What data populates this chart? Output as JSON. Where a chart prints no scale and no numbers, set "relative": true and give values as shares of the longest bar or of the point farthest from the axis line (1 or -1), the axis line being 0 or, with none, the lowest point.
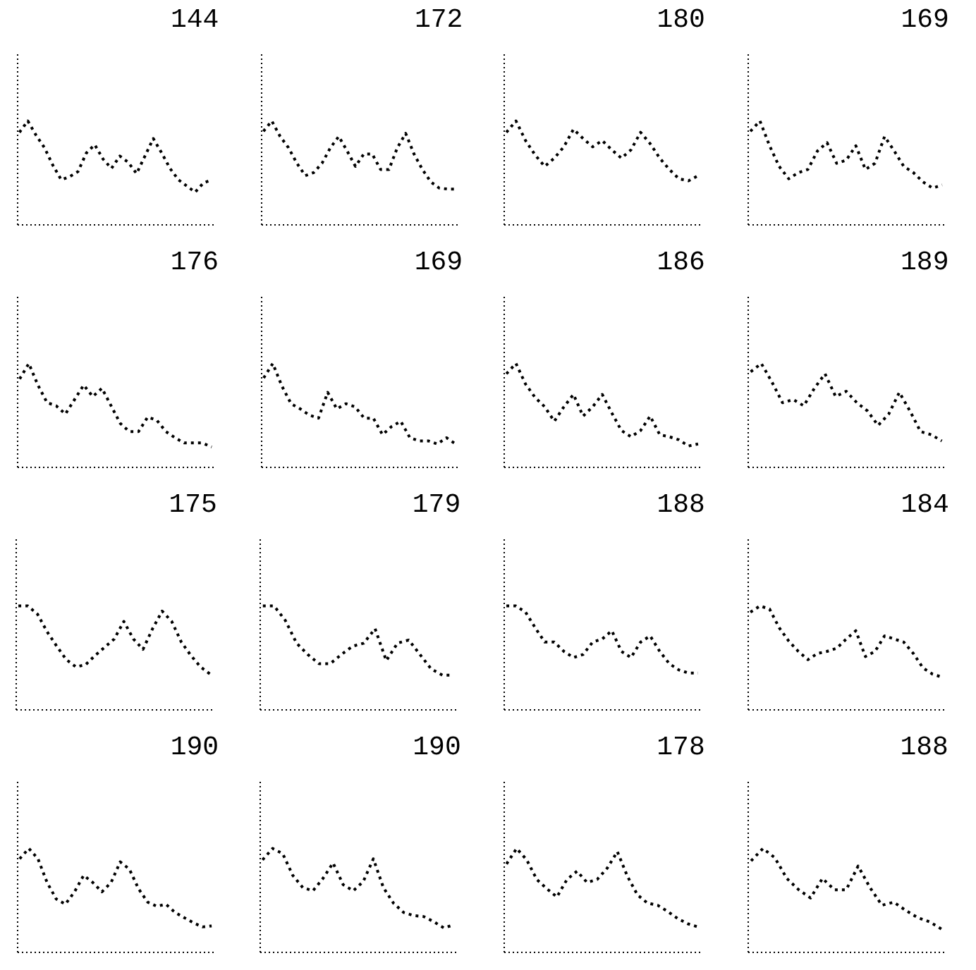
{
  "chart_data": [
    {
      "type": "line",
      "title": "144",
      "relative": true,
      "line_style": "dotted",
      "color": "#000000",
      "categories": [
        null,
        null,
        null,
        null,
        null,
        null,
        null,
        null,
        null,
        null,
        null,
        null,
        null,
        null,
        null,
        null,
        null,
        null,
        null,
        null,
        null,
        null,
        null,
        null
      ],
      "values": [
        0.89,
        1,
        0.86,
        0.74,
        0.57,
        0.43,
        0.46,
        0.51,
        0.69,
        0.77,
        0.63,
        0.54,
        0.66,
        0.6,
        0.49,
        0.66,
        0.83,
        0.69,
        0.54,
        0.43,
        0.37,
        0.31,
        0.4,
        0.43
      ]
    },
    {
      "type": "line",
      "title": "172",
      "relative": true,
      "line_style": "dotted",
      "color": "#000000",
      "categories": [
        null,
        null,
        null,
        null,
        null,
        null,
        null,
        null,
        null,
        null,
        null,
        null,
        null,
        null,
        null,
        null,
        null,
        null,
        null,
        null,
        null,
        null,
        null,
        null
      ],
      "values": [
        0.9,
        1,
        0.85,
        0.74,
        0.59,
        0.47,
        0.5,
        0.59,
        0.74,
        0.85,
        0.71,
        0.56,
        0.68,
        0.68,
        0.53,
        0.53,
        0.74,
        0.88,
        0.68,
        0.53,
        0.41,
        0.35,
        0.34,
        0.34
      ]
    },
    {
      "type": "line",
      "title": "180",
      "relative": true,
      "line_style": "dotted",
      "color": "#000000",
      "categories": [
        null,
        null,
        null,
        null,
        null,
        null,
        null,
        null,
        null,
        null,
        null,
        null,
        null,
        null,
        null,
        null,
        null,
        null,
        null,
        null,
        null
      ],
      "values": [
        0.89,
        1,
        0.81,
        0.67,
        0.56,
        0.64,
        0.75,
        0.92,
        0.83,
        0.75,
        0.81,
        0.72,
        0.64,
        0.72,
        0.89,
        0.78,
        0.64,
        0.53,
        0.44,
        0.42,
        0.47
      ]
    },
    {
      "type": "line",
      "title": "169",
      "relative": true,
      "line_style": "dotted",
      "color": "#000000",
      "categories": [
        null,
        null,
        null,
        null,
        null,
        null,
        null,
        null,
        null,
        null,
        null,
        null,
        null,
        null,
        null,
        null,
        null,
        null,
        null,
        null,
        null
      ],
      "values": [
        0.9,
        1,
        0.76,
        0.56,
        0.44,
        0.5,
        0.53,
        0.71,
        0.79,
        0.59,
        0.62,
        0.76,
        0.53,
        0.59,
        0.85,
        0.71,
        0.56,
        0.5,
        0.41,
        0.35,
        0.38
      ]
    },
    {
      "type": "line",
      "title": "176",
      "relative": true,
      "line_style": "dotted",
      "color": "#000000",
      "categories": [
        null,
        null,
        null,
        null,
        null,
        null,
        null,
        null,
        null,
        null,
        null,
        null,
        null,
        null,
        null,
        null,
        null,
        null,
        null,
        null,
        null,
        null
      ],
      "values": [
        0.85,
        1,
        0.79,
        0.62,
        0.59,
        0.51,
        0.65,
        0.79,
        0.68,
        0.76,
        0.59,
        0.42,
        0.34,
        0.34,
        0.48,
        0.45,
        0.34,
        0.28,
        0.23,
        0.23,
        0.23,
        0.19
      ]
    },
    {
      "type": "line",
      "title": "169",
      "relative": true,
      "line_style": "dotted",
      "color": "#000000",
      "categories": [
        null,
        null,
        null,
        null,
        null,
        null,
        null,
        null,
        null,
        null,
        null,
        null,
        null,
        null,
        null,
        null,
        null,
        null,
        null,
        null,
        null,
        null
      ],
      "values": [
        0.86,
        1,
        0.78,
        0.61,
        0.56,
        0.5,
        0.47,
        0.72,
        0.56,
        0.61,
        0.58,
        0.47,
        0.47,
        0.31,
        0.39,
        0.44,
        0.28,
        0.25,
        0.25,
        0.22,
        0.28,
        0.22
      ]
    },
    {
      "type": "line",
      "title": "186",
      "relative": true,
      "line_style": "dotted",
      "color": "#000000",
      "categories": [
        null,
        null,
        null,
        null,
        null,
        null,
        null,
        null,
        null,
        null,
        null,
        null,
        null,
        null,
        null,
        null,
        null,
        null,
        null,
        null,
        null
      ],
      "values": [
        0.9,
        1,
        0.8,
        0.67,
        0.58,
        0.44,
        0.58,
        0.7,
        0.49,
        0.58,
        0.7,
        0.52,
        0.35,
        0.29,
        0.35,
        0.49,
        0.31,
        0.29,
        0.26,
        0.2,
        0.22
      ]
    },
    {
      "type": "line",
      "title": "189",
      "relative": true,
      "line_style": "dotted",
      "color": "#000000",
      "categories": [
        null,
        null,
        null,
        null,
        null,
        null,
        null,
        null,
        null,
        null,
        null,
        null,
        null,
        null,
        null,
        null,
        null,
        null,
        null
      ],
      "values": [
        0.92,
        1,
        0.82,
        0.62,
        0.65,
        0.59,
        0.76,
        0.9,
        0.68,
        0.73,
        0.62,
        0.54,
        0.4,
        0.51,
        0.72,
        0.54,
        0.34,
        0.31,
        0.25
      ]
    },
    {
      "type": "line",
      "title": "175",
      "relative": true,
      "line_style": "dotted",
      "color": "#000000",
      "categories": [
        null,
        null,
        null,
        null,
        null,
        null,
        null,
        null,
        null,
        null,
        null,
        null,
        null,
        null,
        null,
        null,
        null,
        null,
        null,
        null,
        null
      ],
      "values": [
        1,
        1,
        0.92,
        0.75,
        0.61,
        0.48,
        0.41,
        0.43,
        0.52,
        0.6,
        0.68,
        0.85,
        0.68,
        0.58,
        0.78,
        0.95,
        0.85,
        0.65,
        0.52,
        0.41,
        0.34
      ]
    },
    {
      "type": "line",
      "title": "179",
      "relative": true,
      "line_style": "dotted",
      "color": "#000000",
      "categories": [
        null,
        null,
        null,
        null,
        null,
        null,
        null,
        null,
        null,
        null,
        null,
        null,
        null,
        null,
        null,
        null,
        null,
        null
      ],
      "values": [
        1,
        1,
        0.86,
        0.64,
        0.53,
        0.44,
        0.44,
        0.53,
        0.61,
        0.64,
        0.78,
        0.47,
        0.64,
        0.67,
        0.53,
        0.39,
        0.33,
        0.33
      ]
    },
    {
      "type": "line",
      "title": "188",
      "relative": true,
      "line_style": "dotted",
      "color": "#000000",
      "categories": [
        null,
        null,
        null,
        null,
        null,
        null,
        null,
        null,
        null,
        null,
        null,
        null,
        null,
        null,
        null,
        null,
        null,
        null,
        null,
        null,
        null
      ],
      "values": [
        1,
        1,
        0.94,
        0.79,
        0.65,
        0.65,
        0.56,
        0.5,
        0.53,
        0.65,
        0.68,
        0.76,
        0.56,
        0.5,
        0.65,
        0.71,
        0.56,
        0.44,
        0.38,
        0.35,
        0.35
      ]
    },
    {
      "type": "line",
      "title": "184",
      "relative": true,
      "line_style": "dotted",
      "color": "#000000",
      "categories": [
        null,
        null,
        null,
        null,
        null,
        null,
        null,
        null,
        null,
        null,
        null,
        null,
        null,
        null,
        null,
        null,
        null,
        null,
        null,
        null,
        null
      ],
      "values": [
        0.94,
        1,
        0.97,
        0.79,
        0.66,
        0.56,
        0.48,
        0.54,
        0.56,
        0.59,
        0.68,
        0.76,
        0.51,
        0.56,
        0.71,
        0.68,
        0.65,
        0.54,
        0.4,
        0.34,
        0.31
      ]
    },
    {
      "type": "line",
      "title": "190",
      "relative": true,
      "line_style": "dotted",
      "color": "#000000",
      "categories": [
        null,
        null,
        null,
        null,
        null,
        null,
        null,
        null,
        null,
        null,
        null,
        null,
        null,
        null,
        null,
        null,
        null,
        null,
        null,
        null,
        null,
        null
      ],
      "values": [
        0.9,
        1,
        0.9,
        0.67,
        0.51,
        0.46,
        0.58,
        0.74,
        0.67,
        0.58,
        0.67,
        0.87,
        0.8,
        0.61,
        0.48,
        0.44,
        0.46,
        0.38,
        0.33,
        0.28,
        0.24,
        0.25
      ]
    },
    {
      "type": "line",
      "title": "190",
      "relative": true,
      "line_style": "dotted",
      "color": "#000000",
      "categories": [
        null,
        null,
        null,
        null,
        null,
        null,
        null,
        null,
        null,
        null,
        null,
        null,
        null,
        null,
        null,
        null,
        null,
        null,
        null,
        null
      ],
      "values": [
        0.89,
        1,
        0.95,
        0.74,
        0.62,
        0.59,
        0.71,
        0.86,
        0.65,
        0.59,
        0.68,
        0.9,
        0.62,
        0.47,
        0.38,
        0.35,
        0.34,
        0.29,
        0.23,
        0.26
      ]
    },
    {
      "type": "line",
      "title": "178",
      "relative": true,
      "line_style": "dotted",
      "color": "#000000",
      "categories": [
        null,
        null,
        null,
        null,
        null,
        null,
        null,
        null,
        null,
        null,
        null,
        null,
        null,
        null,
        null,
        null,
        null,
        null,
        null,
        null
      ],
      "values": [
        0.85,
        1,
        0.89,
        0.7,
        0.61,
        0.53,
        0.7,
        0.78,
        0.67,
        0.7,
        0.81,
        0.97,
        0.73,
        0.55,
        0.47,
        0.45,
        0.39,
        0.32,
        0.27,
        0.24
      ]
    },
    {
      "type": "line",
      "title": "188",
      "relative": true,
      "line_style": "dotted",
      "color": "#000000",
      "categories": [
        null,
        null,
        null,
        null,
        null,
        null,
        null,
        null,
        null,
        null,
        null,
        null,
        null,
        null,
        null,
        null,
        null
      ],
      "values": [
        0.88,
        1,
        0.91,
        0.71,
        0.6,
        0.52,
        0.71,
        0.6,
        0.6,
        0.83,
        0.62,
        0.45,
        0.48,
        0.4,
        0.33,
        0.29,
        0.22
      ]
    }
  ]
}
